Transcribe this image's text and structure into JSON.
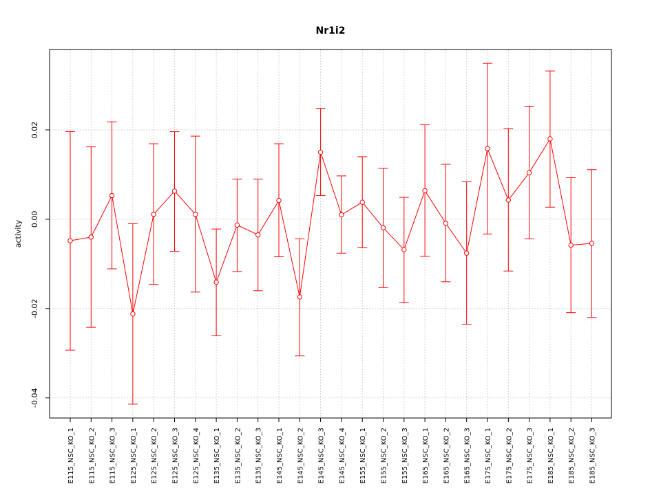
{
  "chart_data": {
    "type": "line",
    "title": "Nr1i2",
    "xlabel": "",
    "ylabel": "activity",
    "ylim": [
      -0.0445,
      0.038
    ],
    "y_ticks": [
      -0.04,
      -0.02,
      0.0,
      0.02
    ],
    "y_tick_labels": [
      "-0.04",
      "-0.02",
      "0.00",
      "0.02"
    ],
    "grid": true,
    "color": "#ff0000",
    "grid_color": "#cccccc",
    "categories": [
      "E115_NSC_KO_1",
      "E115_NSC_KO_2",
      "E115_NSC_KO_3",
      "E125_NSC_KO_1",
      "E125_NSC_KO_2",
      "E125_NSC_KO_3",
      "E125_NSC_KO_4",
      "E135_NSC_KO_1",
      "E135_NSC_KO_2",
      "E135_NSC_KO_3",
      "E145_NSC_KO_1",
      "E145_NSC_KO_2",
      "E145_NSC_KO_3",
      "E145_NSC_KO_4",
      "E155_NSC_KO_1",
      "E155_NSC_KO_2",
      "E155_NSC_KO_3",
      "E165_NSC_KO_1",
      "E165_NSC_KO_2",
      "E165_NSC_KO_3",
      "E175_NSC_KO_1",
      "E175_NSC_KO_2",
      "E175_NSC_KO_3",
      "E185_NSC_KO_1",
      "E185_NSC_KO_2",
      "E185_NSC_KO_3"
    ],
    "values": [
      -0.0048,
      -0.004,
      0.0053,
      -0.0212,
      0.0011,
      0.0063,
      0.0011,
      -0.0141,
      -0.0013,
      -0.0035,
      0.0042,
      -0.0174,
      0.015,
      0.001,
      0.0038,
      -0.0019,
      -0.0068,
      0.0064,
      -0.0009,
      -0.0076,
      0.0158,
      0.0043,
      0.0104,
      0.018,
      -0.0058,
      -0.0054
    ],
    "upper": [
      0.0196,
      0.0162,
      0.0218,
      -0.001,
      0.0169,
      0.0196,
      0.0186,
      -0.0022,
      0.009,
      0.009,
      0.0169,
      -0.0044,
      0.0248,
      0.0097,
      0.014,
      0.0114,
      0.0049,
      0.0212,
      0.0123,
      0.0084,
      0.0349,
      0.0203,
      0.0253,
      0.0332,
      0.0093,
      0.0111
    ],
    "lower": [
      -0.0293,
      -0.0242,
      -0.0111,
      -0.0414,
      -0.0146,
      -0.0072,
      -0.0163,
      -0.0261,
      -0.0117,
      -0.016,
      -0.0084,
      -0.0306,
      0.0053,
      -0.0076,
      -0.0064,
      -0.0153,
      -0.0187,
      -0.0083,
      -0.014,
      -0.0235,
      -0.0033,
      -0.0116,
      -0.0044,
      0.0027,
      -0.0209,
      -0.022
    ]
  }
}
